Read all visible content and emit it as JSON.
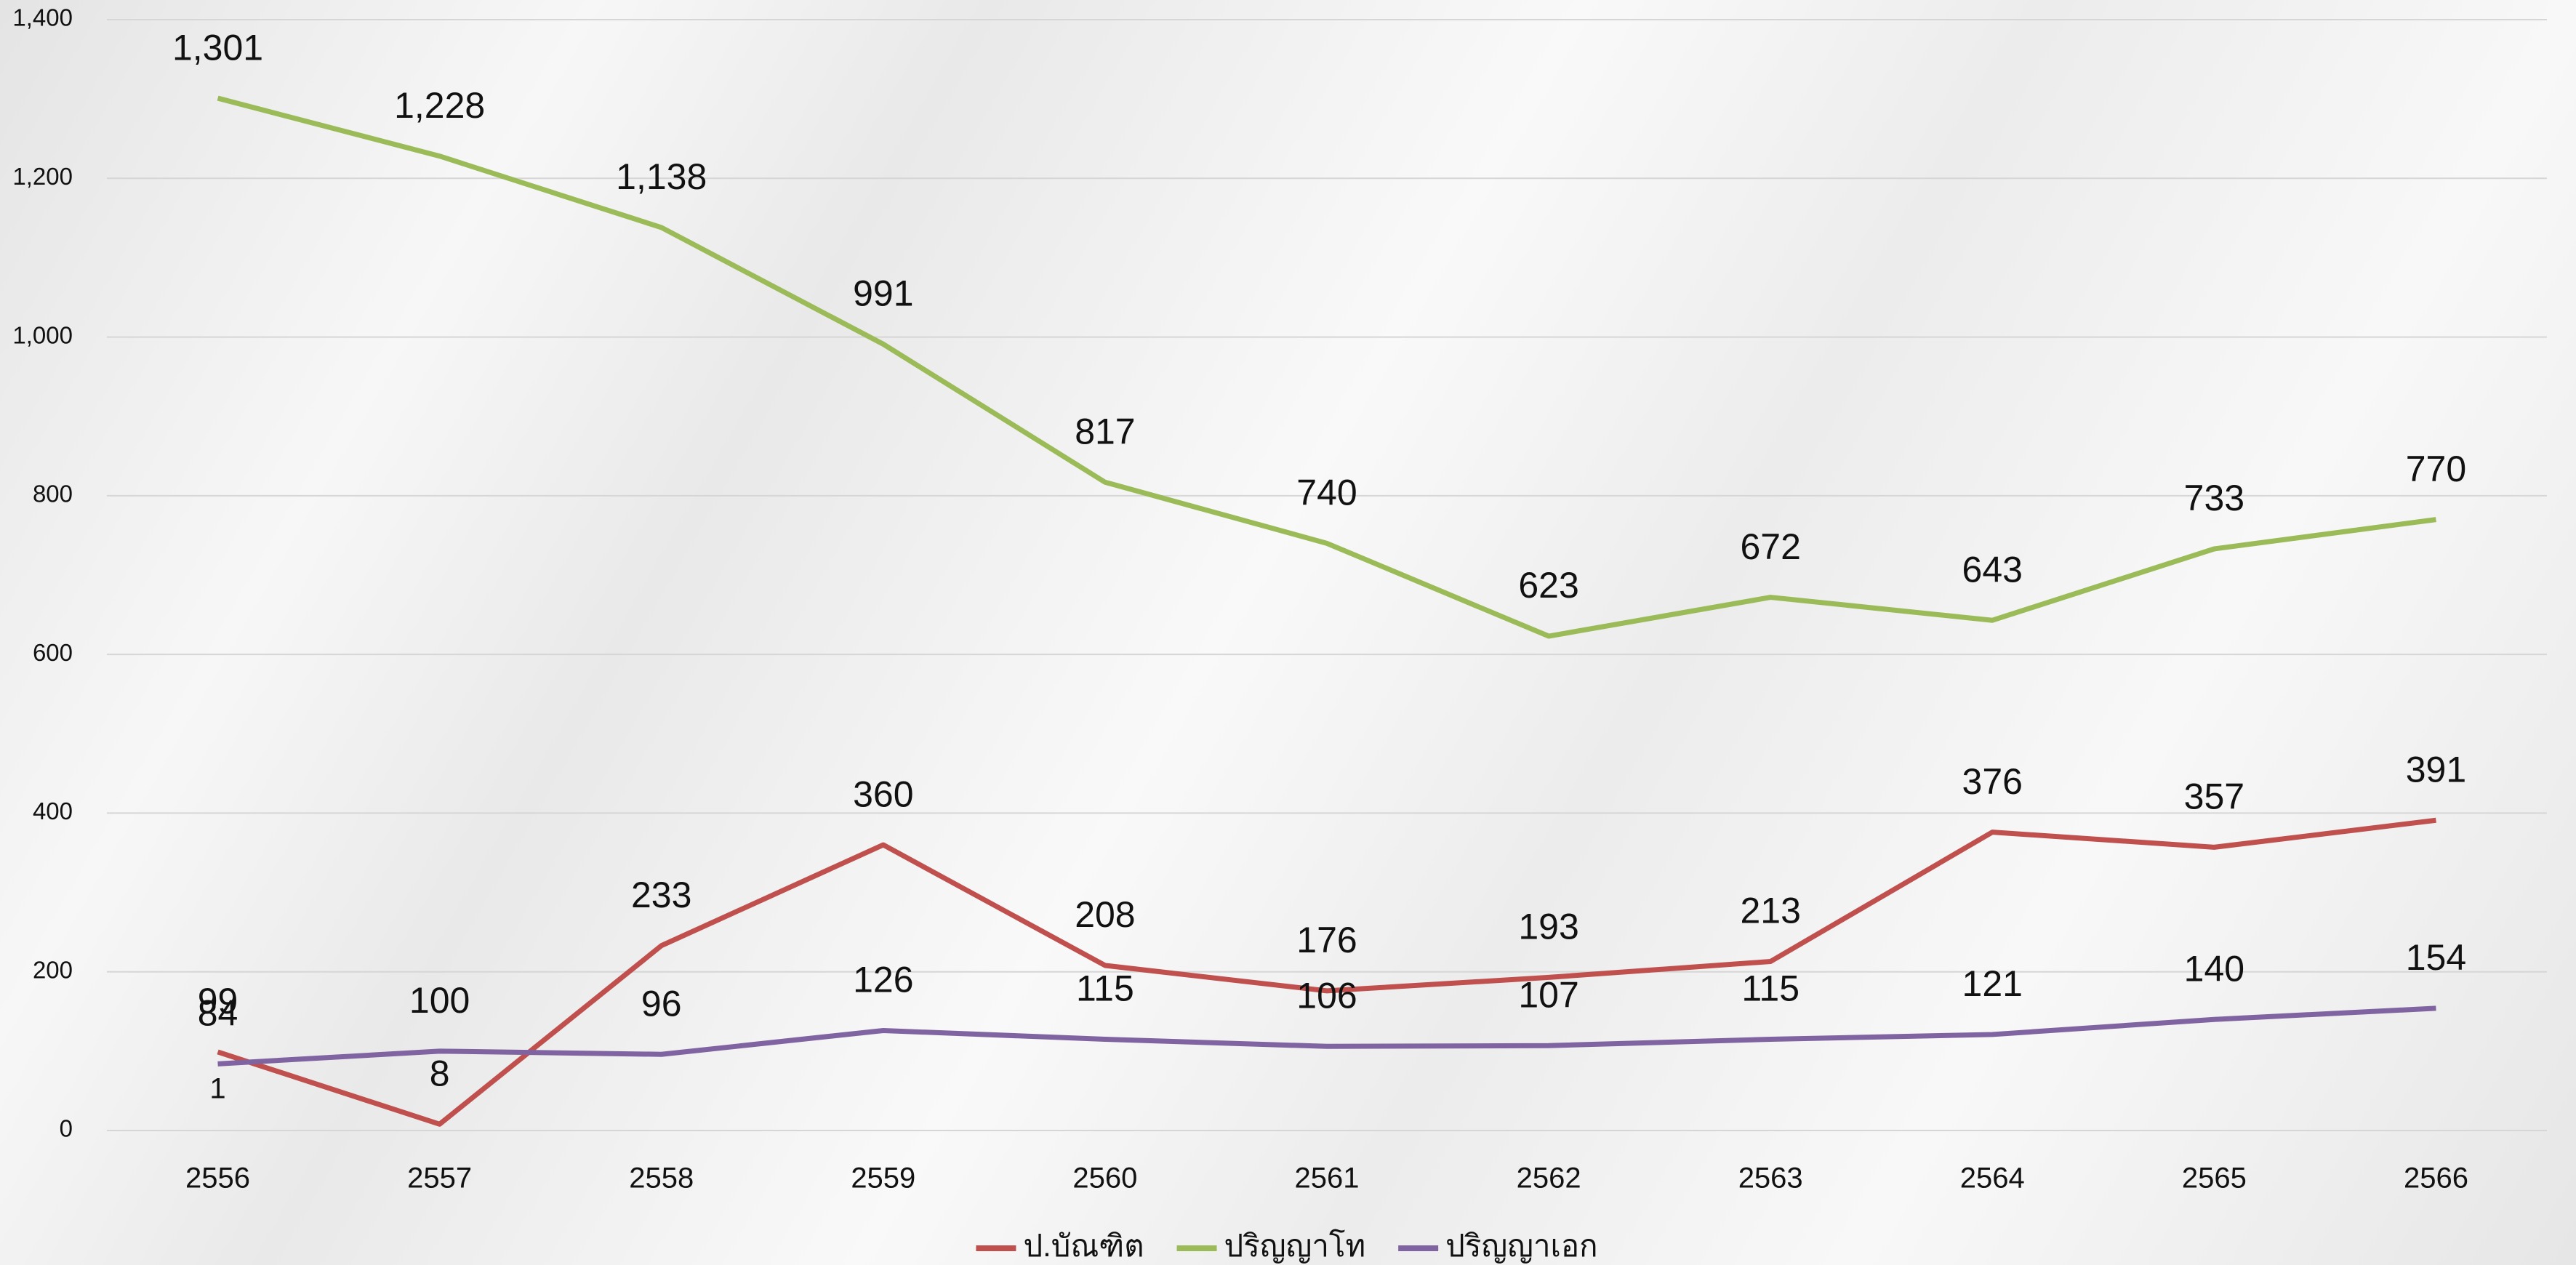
{
  "chart_data": {
    "type": "line",
    "categories": [
      "2556",
      "2557",
      "2558",
      "2559",
      "2560",
      "2561",
      "2562",
      "2563",
      "2564",
      "2565",
      "2566"
    ],
    "series": [
      {
        "name": "ป.บัณฑิต",
        "color": "#c0504d",
        "values": [
          99,
          8,
          233,
          360,
          208,
          176,
          193,
          213,
          376,
          357,
          391
        ]
      },
      {
        "name": "ปริญญาโท",
        "color": "#9bbb59",
        "values": [
          1301,
          1228,
          1138,
          991,
          817,
          740,
          623,
          672,
          643,
          733,
          770
        ],
        "value_labels": [
          "1,301",
          "1,228",
          "1,138",
          "991",
          "817",
          "740",
          "623",
          "672",
          "643",
          "733",
          "770"
        ]
      },
      {
        "name": "ปริญญาเอก",
        "color": "#8064a2",
        "values": [
          84,
          100,
          96,
          126,
          115,
          106,
          107,
          115,
          121,
          140,
          154
        ]
      }
    ],
    "annotation": "1",
    "ylim": [
      0,
      1400
    ],
    "yticks": [
      0,
      200,
      400,
      600,
      800,
      {
        "value": 1000,
        "label": "1,000"
      },
      {
        "value": 1200,
        "label": "1,200"
      },
      {
        "value": 1400,
        "label": "1,400"
      }
    ],
    "grid": true,
    "legend": "bottom"
  }
}
